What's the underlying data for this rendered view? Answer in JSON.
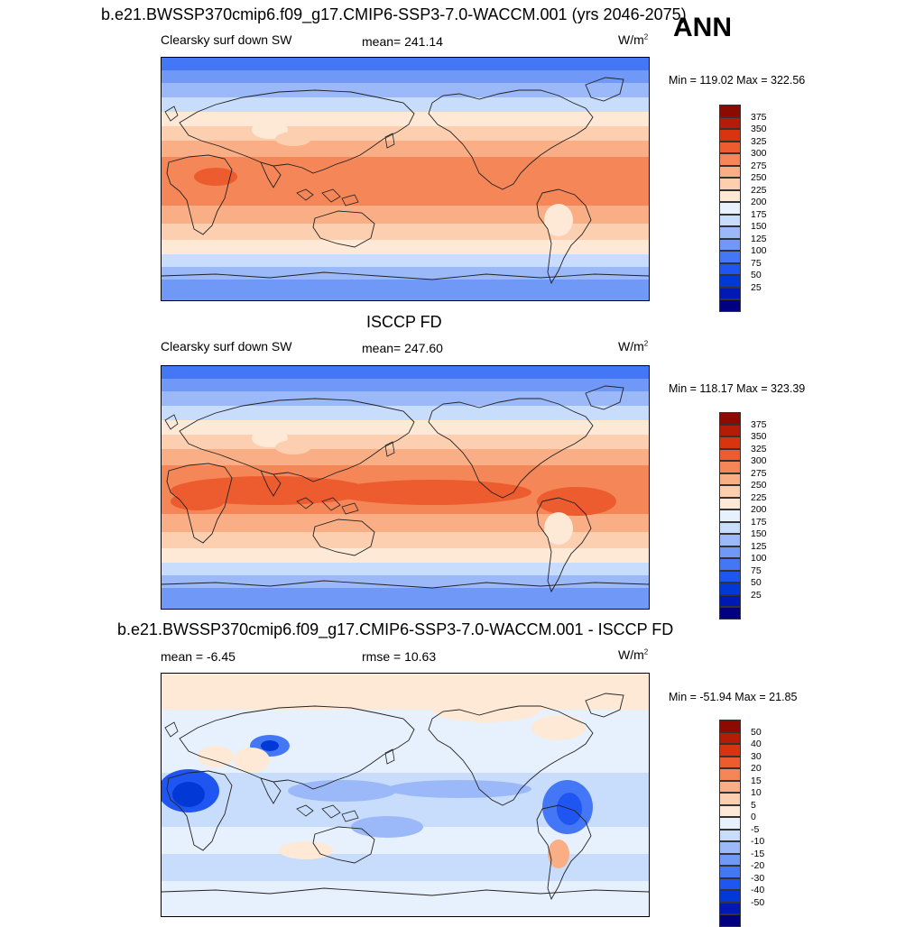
{
  "ann_label": "ANN",
  "colors_abs": [
    "#000080",
    "#0018b4",
    "#0039d6",
    "#1f55f0",
    "#4477f5",
    "#6f98f7",
    "#9bb8f9",
    "#c8dcfb",
    "#e7f0fd",
    "#fde9d6",
    "#fccfb0",
    "#faae86",
    "#f48658",
    "#ec5c2e",
    "#d93410",
    "#b51c06",
    "#8d0a00"
  ],
  "colors_diff": [
    "#000080",
    "#0018b4",
    "#0039d6",
    "#1f55f0",
    "#4477f5",
    "#6f98f7",
    "#9bb8f9",
    "#c8dcfb",
    "#e7f0fd",
    "#fde9d6",
    "#fccfb0",
    "#faae86",
    "#f48658",
    "#ec5c2e",
    "#d93410",
    "#b51c06",
    "#8d0a00"
  ],
  "panel1": {
    "title": "b.e21.BWSSP370cmip6.f09_g17.CMIP6-SSP3-7.0-WACCM.001 (yrs 2046-2075)",
    "left_label": "Clearsky surf down SW",
    "mean_label": "mean= 241.14",
    "units": "W/m",
    "units_sup": "2",
    "minmax": "Min = 119.02 Max = 322.56",
    "ticks": [
      "375",
      "350",
      "325",
      "300",
      "275",
      "250",
      "225",
      "200",
      "175",
      "150",
      "125",
      "100",
      "75",
      "50",
      "25"
    ]
  },
  "panel2": {
    "title": "ISCCP FD",
    "left_label": "Clearsky surf down SW",
    "mean_label": "mean= 247.60",
    "units": "W/m",
    "units_sup": "2",
    "minmax": "Min = 118.17 Max = 323.39",
    "ticks": [
      "375",
      "350",
      "325",
      "300",
      "275",
      "250",
      "225",
      "200",
      "175",
      "150",
      "125",
      "100",
      "75",
      "50",
      "25"
    ]
  },
  "panel3": {
    "title": "b.e21.BWSSP370cmip6.f09_g17.CMIP6-SSP3-7.0-WACCM.001 - ISCCP FD",
    "left_label": "mean =  -6.45",
    "mean_label": "rmse =  10.63",
    "units": "W/m",
    "units_sup": "2",
    "minmax": "Min = -51.94 Max =  21.85",
    "ticks": [
      "50",
      "40",
      "30",
      "20",
      "15",
      "10",
      "5",
      "0",
      "-5",
      "-10",
      "-15",
      "-20",
      "-30",
      "-40",
      "-50"
    ]
  }
}
